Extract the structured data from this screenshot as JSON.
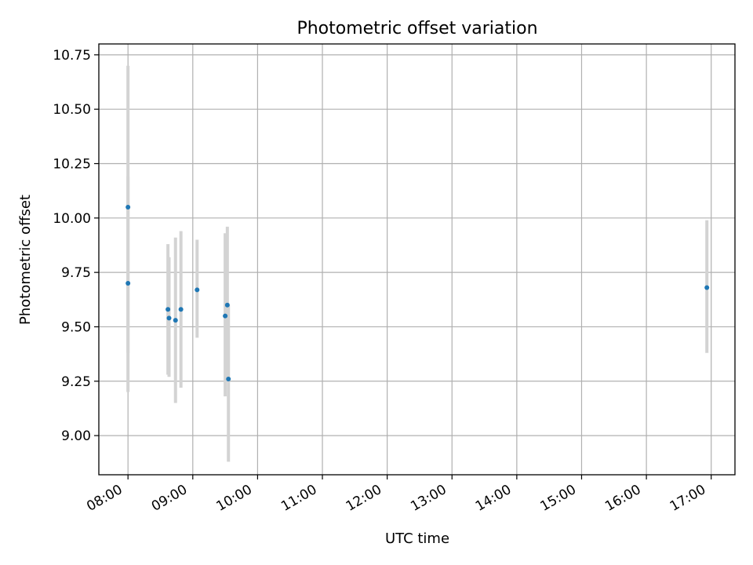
{
  "chart_data": {
    "type": "scatter",
    "title": "Photometric offset variation",
    "xlabel": "UTC time",
    "ylabel": "Photometric offset",
    "x_ticks": [
      "08:00",
      "09:00",
      "10:00",
      "11:00",
      "12:00",
      "13:00",
      "14:00",
      "15:00",
      "16:00",
      "17:00"
    ],
    "y_ticks": [
      "9.00",
      "9.25",
      "9.50",
      "9.75",
      "10.00",
      "10.25",
      "10.50",
      "10.75"
    ],
    "xlim": [
      "07:33",
      "17:22"
    ],
    "ylim": [
      8.82,
      10.8
    ],
    "grid": true,
    "colors": {
      "marker": "#1f77b4",
      "errorbar": "#d3d3d3",
      "grid": "#b0b0b0"
    },
    "series": [
      {
        "points": [
          {
            "x": "08:00",
            "y": 10.05,
            "ylow": 9.38,
            "yhigh": 10.7
          },
          {
            "x": "08:00",
            "y": 9.7,
            "ylow": 9.2,
            "yhigh": 10.19
          },
          {
            "x": "08:37",
            "y": 9.58,
            "ylow": 9.28,
            "yhigh": 9.88
          },
          {
            "x": "08:38",
            "y": 9.54,
            "ylow": 9.27,
            "yhigh": 9.82
          },
          {
            "x": "08:44",
            "y": 9.53,
            "ylow": 9.15,
            "yhigh": 9.91
          },
          {
            "x": "08:49",
            "y": 9.58,
            "ylow": 9.22,
            "yhigh": 9.94
          },
          {
            "x": "09:04",
            "y": 9.67,
            "ylow": 9.45,
            "yhigh": 9.9
          },
          {
            "x": "09:30",
            "y": 9.55,
            "ylow": 9.18,
            "yhigh": 9.93
          },
          {
            "x": "09:32",
            "y": 9.6,
            "ylow": 9.25,
            "yhigh": 9.96
          },
          {
            "x": "09:33",
            "y": 9.26,
            "ylow": 8.88,
            "yhigh": 9.6
          },
          {
            "x": "16:56",
            "y": 9.68,
            "ylow": 9.38,
            "yhigh": 9.99
          }
        ]
      }
    ]
  }
}
